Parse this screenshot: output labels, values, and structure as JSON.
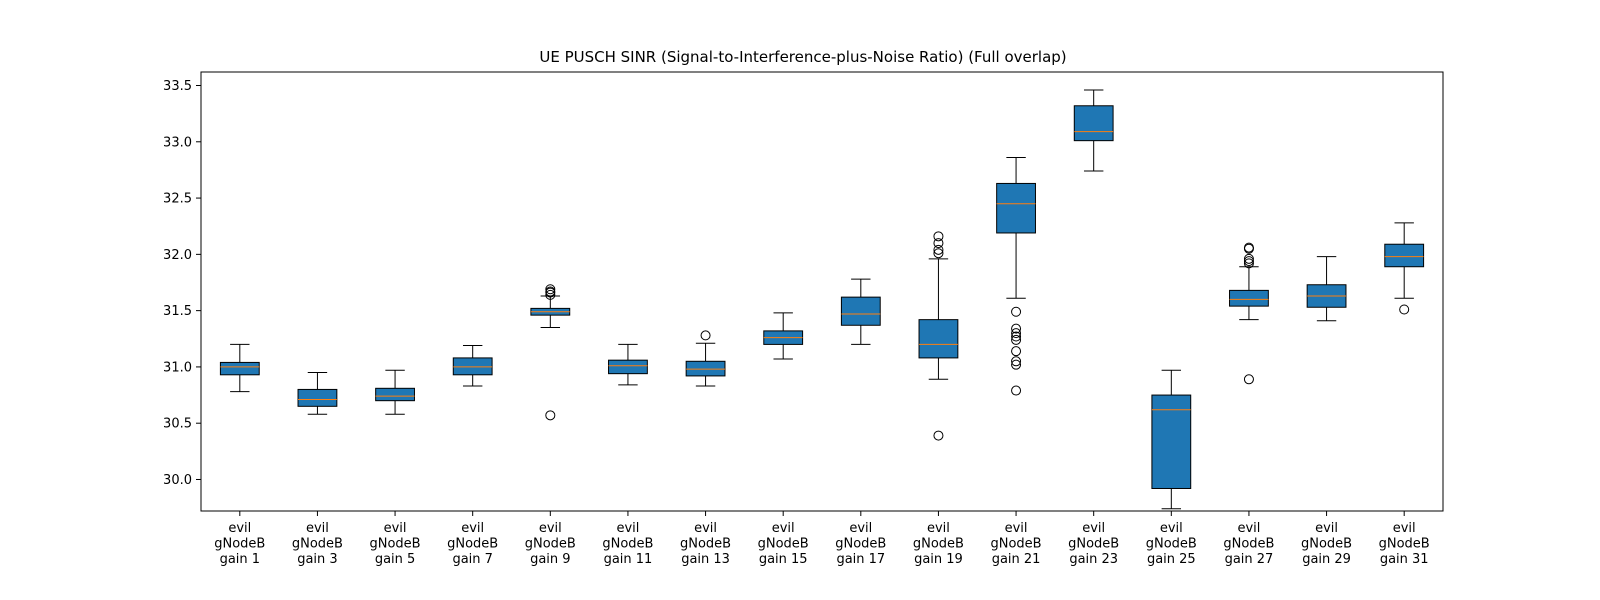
{
  "chart_data": {
    "type": "boxplot",
    "title": "UE PUSCH SINR (Signal-to-Interference-plus-Noise Ratio) (Full overlap)",
    "xlabel": "",
    "ylabel": "",
    "ylim": [
      29.72,
      33.62
    ],
    "yticks": [
      30.0,
      30.5,
      31.0,
      31.5,
      32.0,
      32.5,
      33.0,
      33.5
    ],
    "ytick_labels": [
      "30.0",
      "30.5",
      "31.0",
      "31.5",
      "32.0",
      "32.5",
      "33.0",
      "33.5"
    ],
    "grid": false,
    "box_color": "#1f77b4",
    "median_color": "#ff7f0e",
    "categories": [
      [
        "evil",
        "gNodeB",
        "gain 1"
      ],
      [
        "evil",
        "gNodeB",
        "gain 3"
      ],
      [
        "evil",
        "gNodeB",
        "gain 5"
      ],
      [
        "evil",
        "gNodeB",
        "gain 7"
      ],
      [
        "evil",
        "gNodeB",
        "gain 9"
      ],
      [
        "evil",
        "gNodeB",
        "gain 11"
      ],
      [
        "evil",
        "gNodeB",
        "gain 13"
      ],
      [
        "evil",
        "gNodeB",
        "gain 15"
      ],
      [
        "evil",
        "gNodeB",
        "gain 17"
      ],
      [
        "evil",
        "gNodeB",
        "gain 19"
      ],
      [
        "evil",
        "gNodeB",
        "gain 21"
      ],
      [
        "evil",
        "gNodeB",
        "gain 23"
      ],
      [
        "evil",
        "gNodeB",
        "gain 25"
      ],
      [
        "evil",
        "gNodeB",
        "gain 27"
      ],
      [
        "evil",
        "gNodeB",
        "gain 29"
      ],
      [
        "evil",
        "gNodeB",
        "gain 31"
      ]
    ],
    "boxes": [
      {
        "whislo": 30.78,
        "q1": 30.93,
        "med": 31.0,
        "q3": 31.04,
        "whishi": 31.2,
        "fliers": []
      },
      {
        "whislo": 30.58,
        "q1": 30.65,
        "med": 30.71,
        "q3": 30.8,
        "whishi": 30.95,
        "fliers": []
      },
      {
        "whislo": 30.58,
        "q1": 30.7,
        "med": 30.74,
        "q3": 30.81,
        "whishi": 30.97,
        "fliers": []
      },
      {
        "whislo": 30.83,
        "q1": 30.93,
        "med": 31.0,
        "q3": 31.08,
        "whishi": 31.19,
        "fliers": []
      },
      {
        "whislo": 31.35,
        "q1": 31.46,
        "med": 31.49,
        "q3": 31.52,
        "whishi": 31.63,
        "fliers": [
          30.57,
          31.64,
          31.66,
          31.67,
          31.69
        ]
      },
      {
        "whislo": 30.84,
        "q1": 30.94,
        "med": 31.01,
        "q3": 31.06,
        "whishi": 31.2,
        "fliers": []
      },
      {
        "whislo": 30.83,
        "q1": 30.92,
        "med": 30.98,
        "q3": 31.05,
        "whishi": 31.21,
        "fliers": [
          31.28
        ]
      },
      {
        "whislo": 31.07,
        "q1": 31.2,
        "med": 31.26,
        "q3": 31.32,
        "whishi": 31.48,
        "fliers": []
      },
      {
        "whislo": 31.2,
        "q1": 31.37,
        "med": 31.47,
        "q3": 31.62,
        "whishi": 31.78,
        "fliers": []
      },
      {
        "whislo": 30.89,
        "q1": 31.08,
        "med": 31.2,
        "q3": 31.42,
        "whishi": 31.96,
        "fliers": [
          30.39,
          32.01,
          32.04,
          32.1,
          32.16
        ]
      },
      {
        "whislo": 31.61,
        "q1": 32.19,
        "med": 32.45,
        "q3": 32.63,
        "whishi": 32.86,
        "fliers": [
          30.79,
          31.02,
          31.05,
          31.14,
          31.24,
          31.27,
          31.3,
          31.34,
          31.49
        ]
      },
      {
        "whislo": 32.74,
        "q1": 33.01,
        "med": 33.09,
        "q3": 33.32,
        "whishi": 33.46,
        "fliers": []
      },
      {
        "whislo": 29.74,
        "q1": 29.92,
        "med": 30.62,
        "q3": 30.75,
        "whishi": 30.97,
        "fliers": []
      },
      {
        "whislo": 31.42,
        "q1": 31.54,
        "med": 31.6,
        "q3": 31.68,
        "whishi": 31.89,
        "fliers": [
          30.89,
          31.92,
          31.94,
          31.96,
          32.05,
          32.06
        ]
      },
      {
        "whislo": 31.41,
        "q1": 31.53,
        "med": 31.63,
        "q3": 31.73,
        "whishi": 31.98,
        "fliers": []
      },
      {
        "whislo": 31.61,
        "q1": 31.89,
        "med": 31.98,
        "q3": 32.09,
        "whishi": 32.28,
        "fliers": [
          31.51
        ]
      }
    ]
  }
}
